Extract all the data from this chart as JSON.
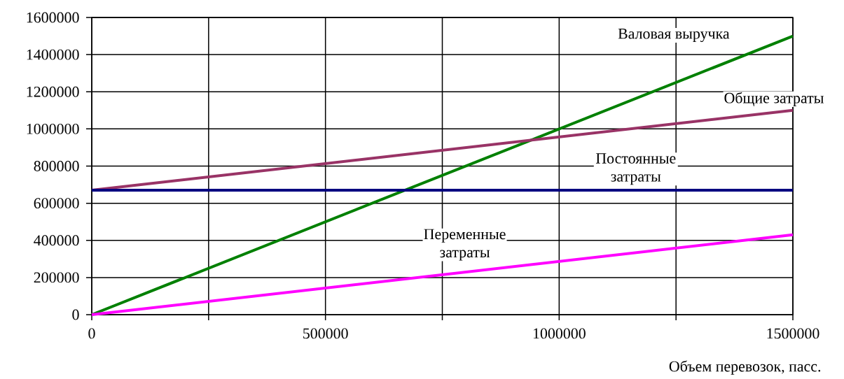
{
  "chart_data": {
    "type": "line",
    "xlabel": "Объем перевозок, пасс.",
    "x": [
      0,
      1500000
    ],
    "series": [
      {
        "name": "Валовая выручка",
        "color": "#008000",
        "values": [
          0,
          1500000
        ]
      },
      {
        "name": "Общие затраты",
        "color": "#993366",
        "values": [
          670000,
          1100000
        ]
      },
      {
        "name": "Постоянные затраты",
        "color": "#000080",
        "values": [
          670000,
          670000
        ]
      },
      {
        "name": "Переменные затраты",
        "color": "#ff00ff",
        "values": [
          0,
          430000
        ]
      }
    ],
    "xlim": [
      0,
      1500000
    ],
    "xticks": [
      0,
      {
        "value": 250000,
        "label": null
      },
      500000,
      {
        "value": 750000,
        "label": null
      },
      1000000,
      {
        "value": 1250000,
        "label": null
      },
      1500000
    ],
    "ylim": [
      0,
      1600000
    ],
    "yticks": [
      0,
      200000,
      400000,
      600000,
      800000,
      1000000,
      1200000,
      1400000,
      1600000
    ],
    "grid": true,
    "marker": "none",
    "line_style": "solid"
  }
}
